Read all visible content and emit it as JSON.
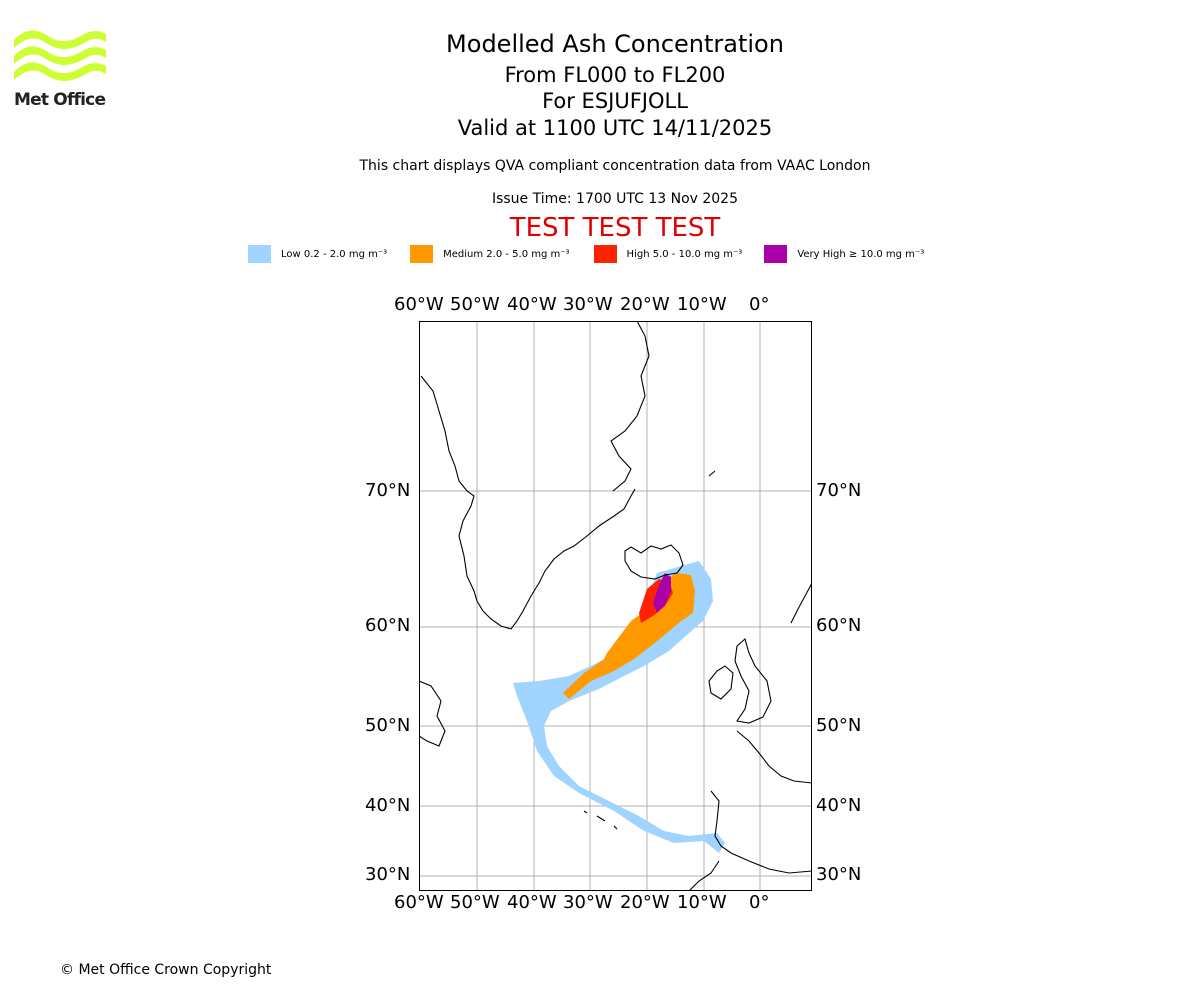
{
  "logo": {
    "text": "Met Office",
    "color": "#ccff33"
  },
  "header": {
    "title": "Modelled Ash Concentration",
    "levels": "From FL000 to FL200",
    "volcano": "For ESJUFJOLL",
    "valid": "Valid at 1100 UTC 14/11/2025",
    "description": "This chart displays QVA compliant concentration data from VAAC London",
    "issue_time": "Issue Time: 1700 UTC 13 Nov 2025",
    "test_banner": "TEST TEST TEST"
  },
  "legend": [
    {
      "label": "Low 0.2 - 2.0 mg m⁻³",
      "color": "#a0d4ff"
    },
    {
      "label": "Medium 2.0 - 5.0 mg m⁻³",
      "color": "#ff9900"
    },
    {
      "label": "High 5.0 - 10.0 mg m⁻³",
      "color": "#ff2200"
    },
    {
      "label": "Very High ≥ 10.0 mg m⁻³",
      "color": "#aa00aa"
    }
  ],
  "axes": {
    "longitude_labels": [
      "60°W",
      "50°W",
      "40°W",
      "30°W",
      "20°W",
      "10°W",
      "0°"
    ],
    "latitude_labels": [
      "70°N",
      "60°N",
      "50°N",
      "40°N",
      "30°N"
    ]
  },
  "footer": {
    "copyright": "© Met Office Crown Copyright"
  }
}
